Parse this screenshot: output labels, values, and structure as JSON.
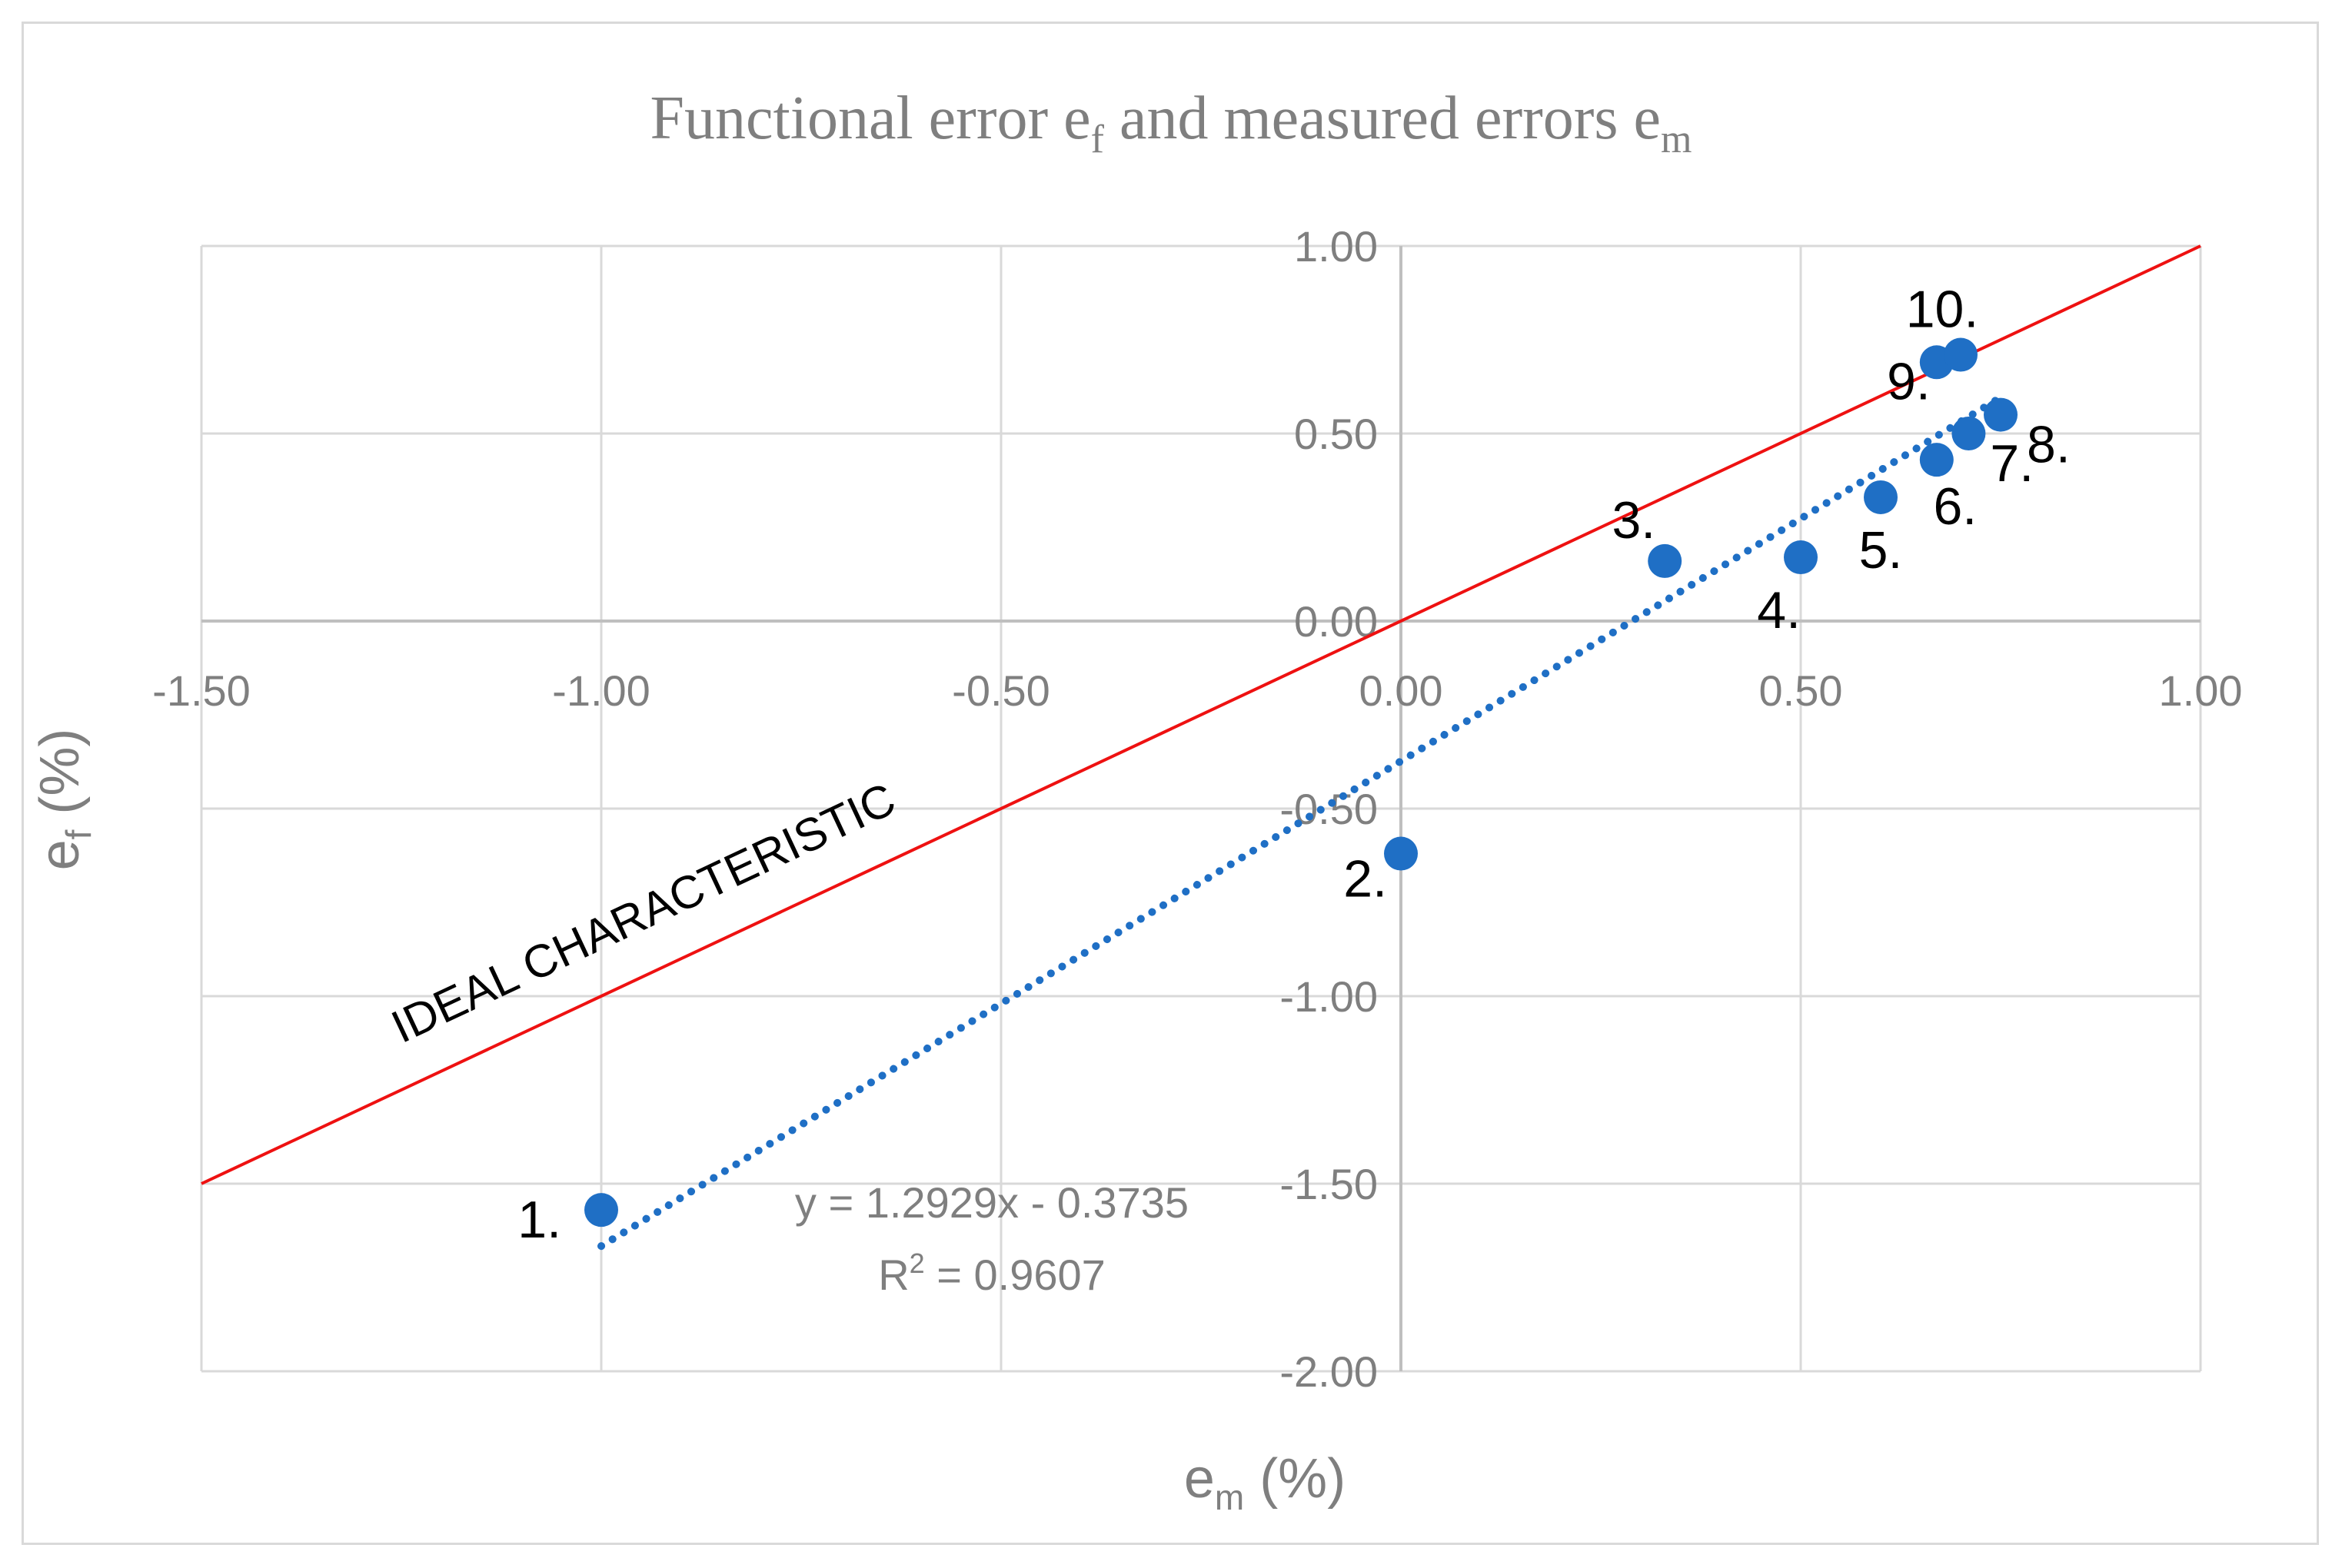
{
  "chart_data": {
    "type": "scatter",
    "title": {
      "prefix": "Functional error e",
      "sub1": "f",
      "middle": " and measured errors e",
      "sub2": "m"
    },
    "xlabel": {
      "base": "e",
      "sub": "m",
      "rest": " (%)"
    },
    "ylabel": {
      "base": "e",
      "sub": "f",
      "rest": " (%)"
    },
    "xlim": [
      -1.5,
      1.0
    ],
    "ylim": [
      -2.0,
      1.0
    ],
    "x_ticks": [
      "-1.50",
      "-1.00",
      "-0.50",
      "0.00",
      "0.50",
      "1.00"
    ],
    "y_ticks": [
      "1.00",
      "0.50",
      "0.00",
      "-0.50",
      "-1.00",
      "-1.50",
      "-2.00"
    ],
    "grid": true,
    "points": [
      {
        "label": "1.",
        "x": -1.0,
        "y": -1.57
      },
      {
        "label": "2.",
        "x": 0.0,
        "y": -0.62
      },
      {
        "label": "3.",
        "x": 0.33,
        "y": 0.16
      },
      {
        "label": "4.",
        "x": 0.5,
        "y": 0.17
      },
      {
        "label": "5.",
        "x": 0.6,
        "y": 0.33
      },
      {
        "label": "6.",
        "x": 0.67,
        "y": 0.43
      },
      {
        "label": "7.",
        "x": 0.71,
        "y": 0.5
      },
      {
        "label": "8.",
        "x": 0.75,
        "y": 0.55
      },
      {
        "label": "9.",
        "x": 0.67,
        "y": 0.69
      },
      {
        "label": "10.",
        "x": 0.7,
        "y": 0.71
      }
    ],
    "trendline": {
      "slope": 1.2929,
      "intercept": -0.3735,
      "x_range": [
        -1.0,
        0.75
      ],
      "equation": "y = 1.2929x - 0.3735",
      "r2": {
        "base": "R",
        "sup": "2",
        "rest": " = 0.9607"
      }
    },
    "ideal_line": {
      "label": "IDEAL CHARACTERISTIC",
      "x_range": [
        -1.5,
        1.0
      ]
    },
    "colors": {
      "points": "#1f6fc5",
      "trendline": "#1f6fc5",
      "ideal": "#ee1111",
      "grid": "#d9d9d9",
      "axis_text": "#7f7f7f",
      "point_labels": "#000000"
    }
  }
}
